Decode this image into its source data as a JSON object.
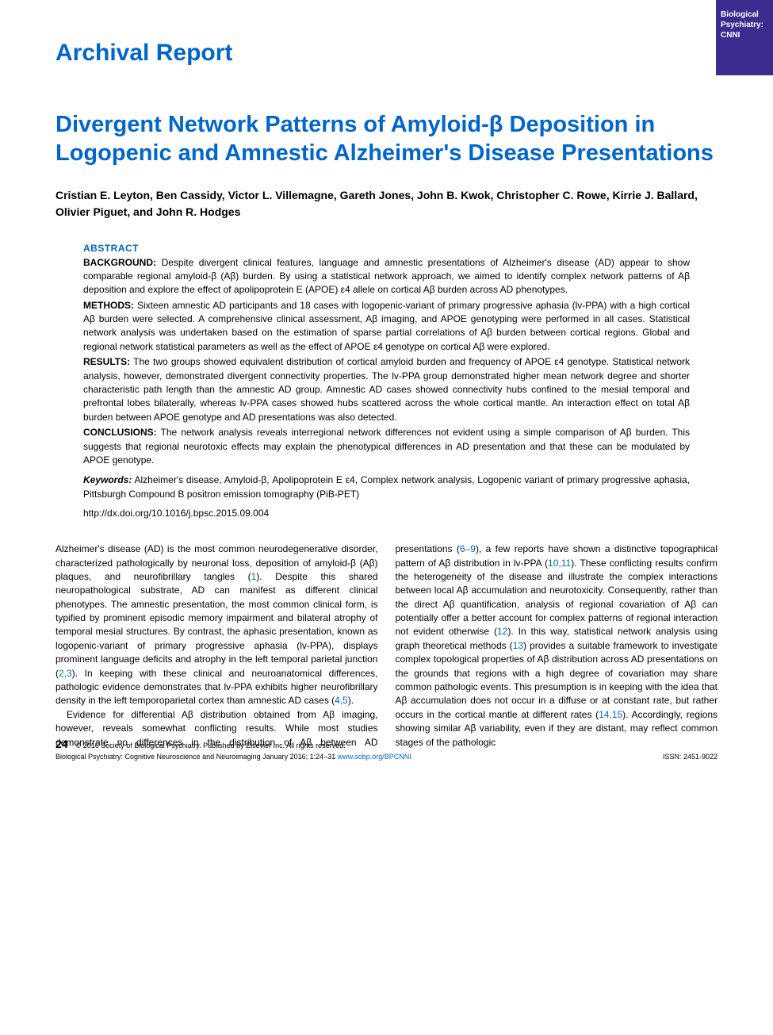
{
  "corner_tab": "Biological Psychiatry: CNNI",
  "report_type": "Archival Report",
  "title": "Divergent Network Patterns of Amyloid-β Deposition in Logopenic and Amnestic Alzheimer's Disease Presentations",
  "authors": "Cristian E. Leyton, Ben Cassidy, Victor L. Villemagne, Gareth Jones, John B. Kwok, Christopher C. Rowe, Kirrie J. Ballard, Olivier Piguet, and John R. Hodges",
  "abstract": {
    "heading": "ABSTRACT",
    "background_label": "BACKGROUND:",
    "background": "Despite divergent clinical features, language and amnestic presentations of Alzheimer's disease (AD) appear to show comparable regional amyloid-β (Aβ) burden. By using a statistical network approach, we aimed to identify complex network patterns of Aβ deposition and explore the effect of apolipoprotein E (APOE) ε4 allele on cortical Aβ burden across AD phenotypes.",
    "methods_label": "METHODS:",
    "methods": "Sixteen amnestic AD participants and 18 cases with logopenic-variant of primary progressive aphasia (lv-PPA) with a high cortical Aβ burden were selected. A comprehensive clinical assessment, Aβ imaging, and APOE genotyping were performed in all cases. Statistical network analysis was undertaken based on the estimation of sparse partial correlations of Aβ burden between cortical regions. Global and regional network statistical parameters as well as the effect of APOE ε4 genotype on cortical Aβ were explored.",
    "results_label": "RESULTS:",
    "results": "The two groups showed equivalent distribution of cortical amyloid burden and frequency of APOE ε4 genotype. Statistical network analysis, however, demonstrated divergent connectivity properties. The lv-PPA group demonstrated higher mean network degree and shorter characteristic path length than the amnestic AD group. Amnestic AD cases showed connectivity hubs confined to the mesial temporal and prefrontal lobes bilaterally, whereas lv-PPA cases showed hubs scattered across the whole cortical mantle. An interaction effect on total Aβ burden between APOE genotype and AD presentations was also detected.",
    "conclusions_label": "CONCLUSIONS:",
    "conclusions": "The network analysis reveals interregional network differences not evident using a simple comparison of Aβ burden. This suggests that regional neurotoxic effects may explain the phenotypical differences in AD presentation and that these can be modulated by APOE genotype.",
    "keywords_label": "Keywords:",
    "keywords": "Alzheimer's disease, Amyloid-β, Apolipoprotein E ε4, Complex network analysis, Logopenic variant of primary progressive aphasia, Pittsburgh Compound B positron emission tomography (PiB-PET)",
    "doi": "http://dx.doi.org/10.1016/j.bpsc.2015.09.004"
  },
  "body": {
    "p1a": "Alzheimer's disease (AD) is the most common neurodegenerative disorder, characterized pathologically by neuronal loss, deposition of amyloid-β (Aβ) plaques, and neurofibrillary tangles (",
    "p1b": "). Despite this shared neuropathological substrate, AD can manifest as different clinical phenotypes. The amnestic presentation, the most common clinical form, is typified by prominent episodic memory impairment and bilateral atrophy of temporal mesial structures. By contrast, the aphasic presentation, known as logopenic-variant of primary progressive aphasia (lv-PPA), displays prominent language deficits and atrophy in the left temporal parietal junction (",
    "p1c": "). In keeping with these clinical and neuroanatomical differences, pathologic evidence demonstrates that lv-PPA exhibits higher neurofibrillary density in the left temporoparietal cortex than amnestic AD cases (",
    "p1d": ").",
    "p2a": "Evidence for differential Aβ distribution obtained from Aβ imaging, however, reveals somewhat conflicting results. While most studies demonstrate no differences in the distribution of",
    "p2b": "Aβ between AD presentations (",
    "p2c": "), a few reports have shown a distinctive topographical pattern of Aβ distribution in lv-PPA (",
    "p2d": "). These conflicting results confirm the heterogeneity of the disease and illustrate the complex interactions between local Aβ accumulation and neurotoxicity. Consequently, rather than the direct Aβ quantification, analysis of regional covariation of Aβ can potentially offer a better account for complex patterns of regional interaction not evident otherwise (",
    "p2e": "). In this way, statistical network analysis using graph theoretical methods (",
    "p2f": ") provides a suitable framework to investigate complex topological properties of Aβ distribution across AD presentations on the grounds that regions with a high degree of covariation may share common pathologic events. This presumption is in keeping with the idea that Aβ accumulation does not occur in a diffuse or at constant rate, but rather occurs in the cortical mantle at different rates (",
    "p2g": "). Accordingly, regions showing similar Aβ variability, even if they are distant, may reflect common stages of the pathologic",
    "ref1": "1",
    "ref23": "2,3",
    "ref45": "4,5",
    "ref69": "6–9",
    "ref1011": "10,11",
    "ref12": "12",
    "ref13": "13",
    "ref1415": "14,15"
  },
  "footer": {
    "page_num": "24",
    "copyright": "© 2016 Society of Biological Psychiatry. Published by Elsevier Inc. All rights reserved.",
    "citation": "Biological Psychiatry: Cognitive Neuroscience and Neuroimaging January 2016; 1:24–31",
    "url": "www.sobp.org/BPCNNI",
    "issn": "ISSN: 2451-9022"
  },
  "colors": {
    "link_blue": "#0066cc",
    "corner_purple": "#3a2d8f",
    "text_black": "#000000",
    "background": "#ffffff"
  }
}
